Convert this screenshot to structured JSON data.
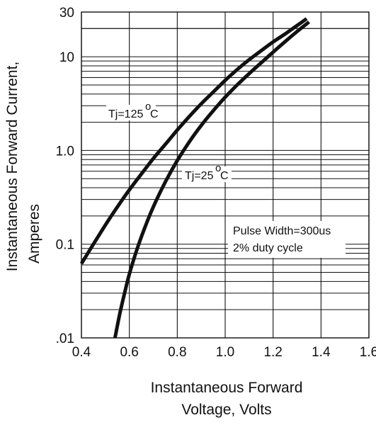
{
  "chart_data": {
    "type": "line",
    "xlabel_lines": [
      "Instantaneous Forward",
      "Voltage, Volts"
    ],
    "ylabel_lines": [
      "Instantaneous Forward Current,",
      "Amperes"
    ],
    "xlim": [
      0.4,
      1.6
    ],
    "ylim": [
      0.01,
      30
    ],
    "yscale": "log",
    "grid": true,
    "x_ticks": [
      {
        "value": 0.4,
        "label": "0.4"
      },
      {
        "value": 0.6,
        "label": "0.6"
      },
      {
        "value": 0.8,
        "label": "0.8"
      },
      {
        "value": 1.0,
        "label": "1.0"
      },
      {
        "value": 1.2,
        "label": "1.2"
      },
      {
        "value": 1.4,
        "label": "1.4"
      },
      {
        "value": 1.6,
        "label": "1.6"
      }
    ],
    "y_ticks": [
      {
        "value": 0.01,
        "label": ".01"
      },
      {
        "value": 0.1,
        "label": "0.1"
      },
      {
        "value": 1.0,
        "label": "1.0"
      },
      {
        "value": 10,
        "label": "10"
      },
      {
        "value": 30,
        "label": "30"
      }
    ],
    "series": [
      {
        "name": "Tj=125°C",
        "x": [
          0.4,
          0.45,
          0.5,
          0.55,
          0.6,
          0.65,
          0.7,
          0.75,
          0.8,
          0.85,
          0.9,
          0.95,
          1.0,
          1.05,
          1.1,
          1.15,
          1.2,
          1.25,
          1.3,
          1.34
        ],
        "y": [
          0.062,
          0.1,
          0.16,
          0.25,
          0.38,
          0.56,
          0.82,
          1.16,
          1.65,
          2.3,
          3.15,
          4.2,
          5.6,
          7.3,
          9.3,
          11.6,
          14.4,
          17.5,
          21.5,
          25.5
        ]
      },
      {
        "name": "Tj=25°C",
        "x": [
          0.54,
          0.56,
          0.58,
          0.6,
          0.63,
          0.66,
          0.7,
          0.75,
          0.8,
          0.85,
          0.9,
          0.95,
          1.0,
          1.05,
          1.1,
          1.15,
          1.2,
          1.25,
          1.3,
          1.35
        ],
        "y": [
          0.01,
          0.018,
          0.03,
          0.048,
          0.085,
          0.14,
          0.25,
          0.46,
          0.78,
          1.23,
          1.85,
          2.65,
          3.7,
          5.0,
          6.6,
          8.6,
          11.2,
          14.5,
          18.6,
          23.5
        ]
      }
    ],
    "annotations": {
      "tj125": {
        "label": "Tj=125",
        "deg": "o",
        "unit": "C"
      },
      "tj25": {
        "label": "Tj=25",
        "deg": "o",
        "unit": "C"
      },
      "pulse_line1": "Pulse Width=300us",
      "pulse_line2": "2% duty cycle"
    }
  }
}
